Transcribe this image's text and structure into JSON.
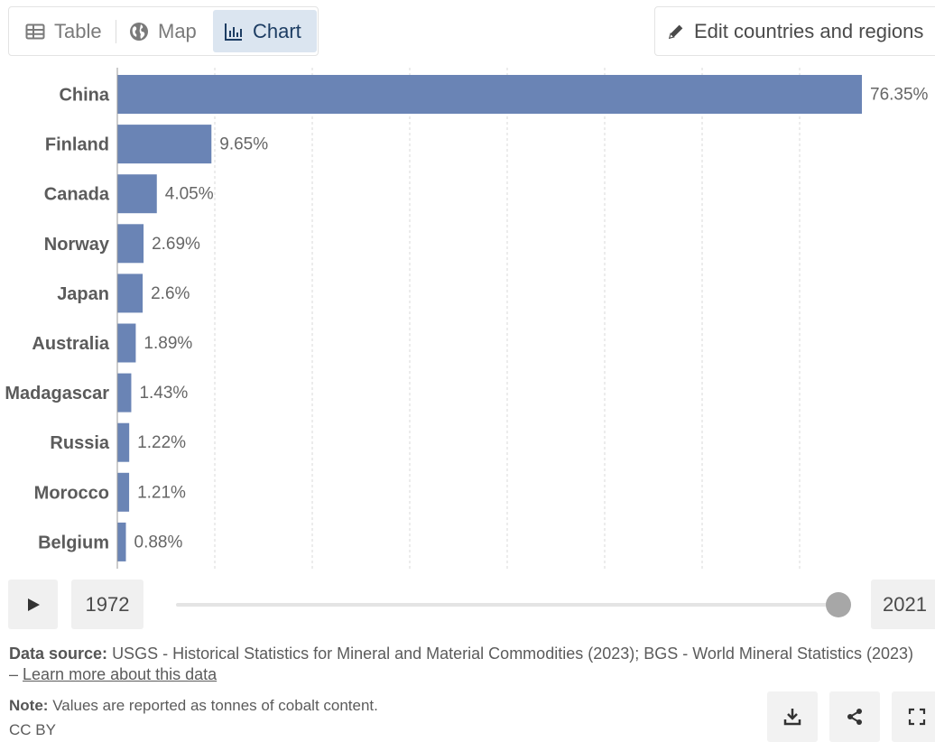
{
  "tabs": [
    {
      "label": "Table",
      "icon": "table-icon"
    },
    {
      "label": "Map",
      "icon": "globe-icon"
    },
    {
      "label": "Chart",
      "icon": "chart-icon",
      "active": true
    }
  ],
  "edit_button": {
    "label": "Edit countries and regions",
    "icon": "pencil-icon"
  },
  "chart_data": {
    "type": "bar",
    "orientation": "horizontal",
    "categories": [
      "China",
      "Finland",
      "Canada",
      "Norway",
      "Japan",
      "Australia",
      "Madagascar",
      "Russia",
      "Morocco",
      "Belgium"
    ],
    "values": [
      76.35,
      9.65,
      4.05,
      2.69,
      2.6,
      1.89,
      1.43,
      1.22,
      1.21,
      0.88
    ],
    "value_labels": [
      "76.35%",
      "9.65%",
      "4.05%",
      "2.69%",
      "2.6%",
      "1.89%",
      "1.43%",
      "1.22%",
      "1.21%",
      "0.88%"
    ],
    "unit": "%",
    "bar_color": "#6a84b5",
    "grid": true,
    "title": "",
    "xlabel": "",
    "ylabel": ""
  },
  "timeline": {
    "start_year": "1972",
    "end_year": "2021"
  },
  "footer": {
    "source_label": "Data source:",
    "source_text": "USGS - Historical Statistics for Mineral and Material Commodities (2023); BGS - World Mineral Statistics (2023) –",
    "source_link": "Learn more about this data",
    "note_label": "Note:",
    "note_text": "Values are reported as tonnes of cobalt content.",
    "license": "CC BY"
  },
  "actions": [
    {
      "name": "download-icon"
    },
    {
      "name": "share-icon"
    },
    {
      "name": "fullscreen-icon"
    }
  ]
}
